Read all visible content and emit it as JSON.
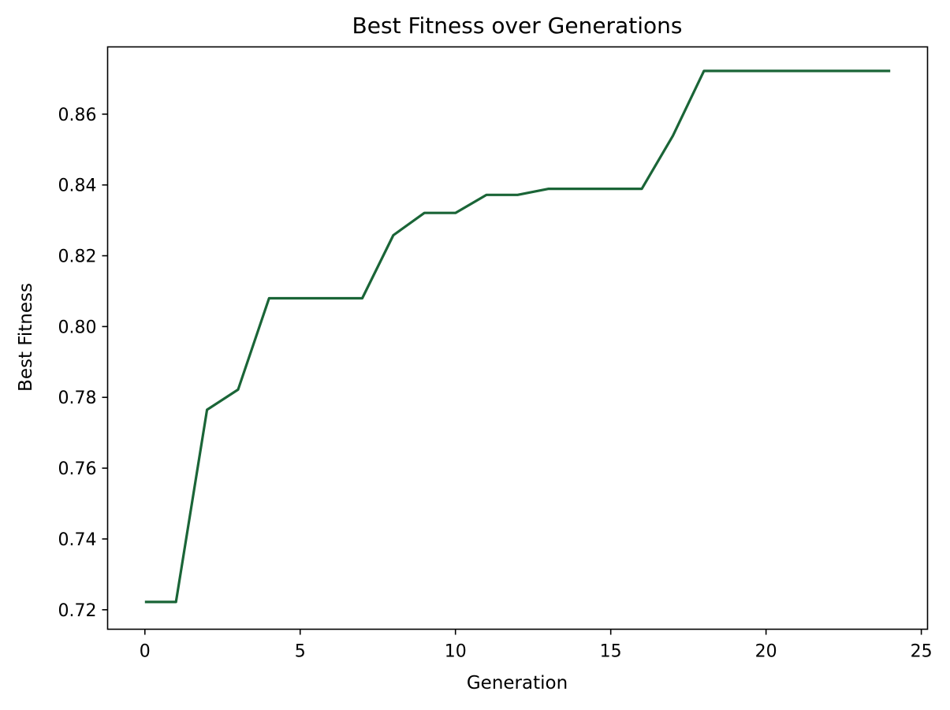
{
  "chart_data": {
    "type": "line",
    "title": "Best Fitness over Generations",
    "xlabel": "Generation",
    "ylabel": "Best Fitness",
    "xlim": [
      -1.2,
      25.2
    ],
    "ylim": [
      0.7145,
      0.879
    ],
    "xticks": [
      0,
      5,
      10,
      15,
      20,
      25
    ],
    "yticks": [
      0.72,
      0.74,
      0.76,
      0.78,
      0.8,
      0.82,
      0.84,
      0.86
    ],
    "xtick_labels": [
      "0",
      "5",
      "10",
      "15",
      "20",
      "25"
    ],
    "ytick_labels": [
      "0.72",
      "0.74",
      "0.76",
      "0.78",
      "0.80",
      "0.82",
      "0.84",
      "0.86"
    ],
    "grid": false,
    "series": [
      {
        "color": "#1a6537",
        "x": [
          0,
          1,
          2,
          3,
          4,
          5,
          6,
          7,
          8,
          9,
          10,
          11,
          12,
          13,
          14,
          15,
          16,
          17,
          18,
          19,
          20,
          21,
          22,
          23,
          24
        ],
        "values": [
          0.7222,
          0.7222,
          0.7765,
          0.7822,
          0.808,
          0.808,
          0.808,
          0.808,
          0.8258,
          0.8321,
          0.8321,
          0.8372,
          0.8372,
          0.8389,
          0.8389,
          0.8389,
          0.8389,
          0.8539,
          0.8722,
          0.8722,
          0.8722,
          0.8722,
          0.8722,
          0.8722,
          0.8722
        ]
      }
    ]
  }
}
